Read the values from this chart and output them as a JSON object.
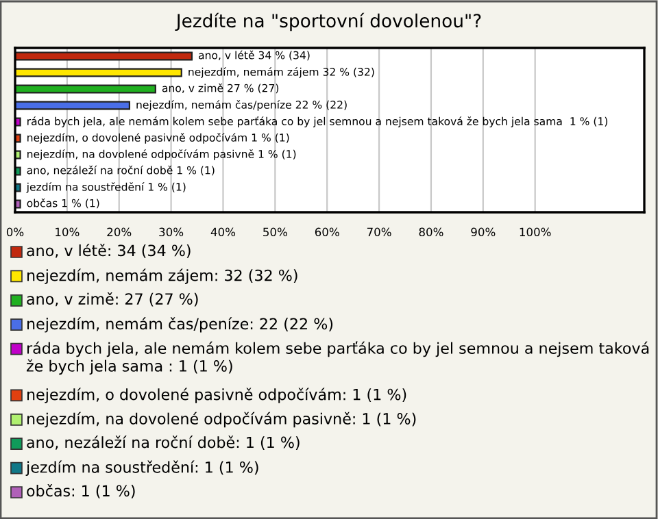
{
  "chart_data": {
    "type": "bar",
    "orientation": "horizontal",
    "title": "Jezdíte na \"sportovní dovolenou\"?",
    "categories": [
      null,
      null,
      null,
      null,
      null,
      null,
      null,
      null,
      null,
      null
    ],
    "values": [
      34,
      32,
      27,
      22,
      1,
      1,
      1,
      1,
      1,
      1
    ],
    "colors": [
      "#c0280e",
      "#ffe600",
      "#20b020",
      "#4a6ee8",
      "#c000c8",
      "#e04010",
      "#b0f070",
      "#109a5a",
      "#107888",
      "#b060b8"
    ],
    "value_labels": [
      "ano, v létě 34 % (34)",
      "nejezdím, nemám zájem 32 % (32)",
      "ano, v zimě 27 % (27)",
      "nejezdím, nemám čas/peníze 22 % (22)",
      "ráda bych jela, ale nemám kolem sebe parťáka co by jel semnou a nejsem taková že bych jela sama  1 % (1)",
      "nejezdím, o dovolené pasivně odpočívám 1 % (1)",
      "nejezdím, na dovolené odpočívám pasivně 1 % (1)",
      "ano, nezáleží na roční době 1 % (1)",
      "jezdím na soustředění 1 % (1)",
      "občas 1 % (1)"
    ],
    "xlim": [
      0,
      121
    ],
    "xticks": [
      {
        "value": 0,
        "label": "0%"
      },
      {
        "value": 10,
        "label": "10%"
      },
      {
        "value": 20,
        "label": "20%"
      },
      {
        "value": 30,
        "label": "30%"
      },
      {
        "value": 40,
        "label": "40%"
      },
      {
        "value": 50,
        "label": "50%"
      },
      {
        "value": 60,
        "label": "60%"
      },
      {
        "value": 70,
        "label": "70%"
      },
      {
        "value": 80,
        "label": "80%"
      },
      {
        "value": 90,
        "label": "90%"
      },
      {
        "value": 100,
        "label": "100%"
      }
    ],
    "grid": "x",
    "annotations": [
      "ano, v létě: 34 (34 %)",
      "nejezdím, nemám zájem: 32 (32 %)",
      "ano, v zimě: 27 (27 %)",
      "nejezdím, nemám čas/peníze: 22 (22 %)",
      "ráda bych jela, ale nemám kolem sebe parťáka co by jel semnou a nejsem taková že bych jela sama : 1 (1 %)",
      "nejezdím, o dovolené pasivně odpočívám: 1 (1 %)",
      "nejezdím, na dovolené odpočívám pasivně: 1 (1 %)",
      "ano, nezáleží na roční době: 1 (1 %)",
      "jezdím na soustředění: 1 (1 %)",
      "občas: 1 (1 %)"
    ]
  }
}
